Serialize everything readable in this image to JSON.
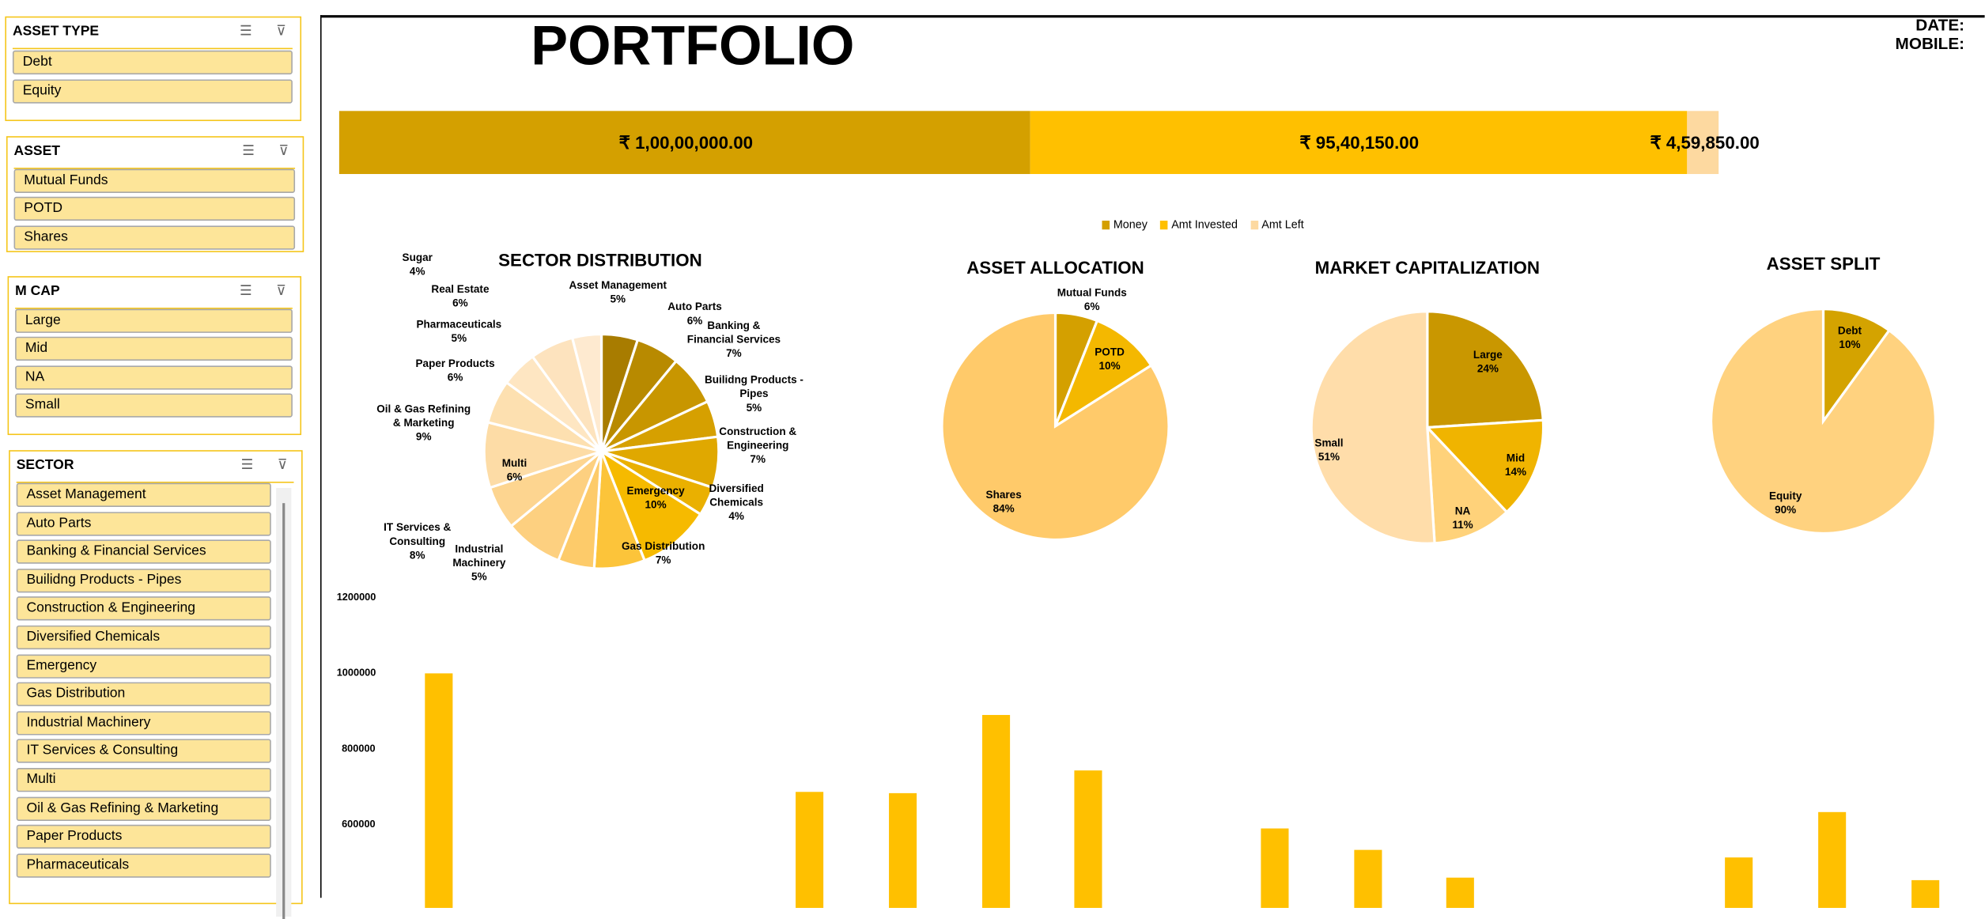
{
  "slicers": {
    "asset_type": {
      "title": "ASSET TYPE",
      "items": [
        "Debt",
        "Equity"
      ]
    },
    "asset": {
      "title": "ASSET",
      "items": [
        "Mutual Funds",
        "POTD",
        "Shares"
      ]
    },
    "mcap": {
      "title": "M CAP",
      "items": [
        "Large",
        "Mid",
        "NA",
        "Small"
      ]
    },
    "sector": {
      "title": "SECTOR",
      "items": [
        "Asset Management",
        "Auto Parts",
        "Banking & Financial Services",
        "Builidng Products - Pipes",
        "Construction & Engineering",
        "Diversified Chemicals",
        "Emergency",
        "Gas Distribution",
        "Industrial Machinery",
        "IT Services & Consulting",
        "Multi",
        "Oil & Gas Refining & Marketing",
        "Paper Products",
        "Pharmaceuticals"
      ]
    }
  },
  "header": {
    "title": "PORTFOLIO",
    "date_label": "DATE:",
    "mobile_label": "MOBILE:"
  },
  "chart_data": [
    {
      "type": "bar",
      "name": "money-summary",
      "stacked": true,
      "orientation": "horizontal",
      "series": [
        {
          "name": "Money",
          "value": 10000000,
          "label": "₹ 1,00,00,000.00",
          "color": "#D4A000"
        },
        {
          "name": "Amt Invested",
          "value": 9540150,
          "label": "₹ 95,40,150.00",
          "color": "#FFC000"
        },
        {
          "name": "Amt Left",
          "value": 459850,
          "label": "₹ 4,59,850.00",
          "color": "#FDD9A0"
        }
      ],
      "legend": "bottom"
    },
    {
      "type": "pie",
      "title": "SECTOR DISTRIBUTION",
      "slices": [
        {
          "label": "Asset Management",
          "value": 5,
          "pct": "5%",
          "color": "#A87C00"
        },
        {
          "label": "Auto Parts",
          "value": 6,
          "pct": "6%",
          "color": "#B88A00"
        },
        {
          "label": "Banking & Financial Services",
          "value": 7,
          "pct": "7%",
          "color": "#C89600"
        },
        {
          "label": "Builidng Products - Pipes",
          "value": 5,
          "pct": "5%",
          "color": "#D6A000"
        },
        {
          "label": "Construction & Engineering",
          "value": 7,
          "pct": "7%",
          "color": "#E0A800"
        },
        {
          "label": "Diversified Chemicals",
          "value": 4,
          "pct": "4%",
          "color": "#EAB000"
        },
        {
          "label": "Emergency",
          "value": 10,
          "pct": "10%",
          "color": "#F6BA00"
        },
        {
          "label": "Gas Distribution",
          "value": 7,
          "pct": "7%",
          "color": "#FCC43A"
        },
        {
          "label": "Industrial Machinery",
          "value": 5,
          "pct": "5%",
          "color": "#FDCB6A"
        },
        {
          "label": "IT Services & Consulting",
          "value": 8,
          "pct": "8%",
          "color": "#FDD080"
        },
        {
          "label": "Multi",
          "value": 6,
          "pct": "6%",
          "color": "#FDD590"
        },
        {
          "label": "Oil & Gas Refining & Marketing",
          "value": 9,
          "pct": "9%",
          "color": "#FDDCA6"
        },
        {
          "label": "Paper Products",
          "value": 6,
          "pct": "6%",
          "color": "#FDE0B0"
        },
        {
          "label": "Pharmaceuticals",
          "value": 5,
          "pct": "5%",
          "color": "#FEE6C2"
        },
        {
          "label": "Real Estate",
          "value": 6,
          "pct": "6%",
          "color": "#FDE3BE"
        },
        {
          "label": "Sugar",
          "value": 4,
          "pct": "4%",
          "color": "#FEEAD0"
        }
      ]
    },
    {
      "type": "pie",
      "title": "ASSET ALLOCATION",
      "slices": [
        {
          "label": "Mutual Funds",
          "value": 6,
          "pct": "6%",
          "color": "#D4A000"
        },
        {
          "label": "POTD",
          "value": 10,
          "pct": "10%",
          "color": "#F4B800"
        },
        {
          "label": "Shares",
          "value": 84,
          "pct": "84%",
          "color": "#FFCA6A"
        }
      ]
    },
    {
      "type": "pie",
      "title": "MARKET CAPITALIZATION",
      "slices": [
        {
          "label": "Large",
          "value": 24,
          "pct": "24%",
          "color": "#C99700"
        },
        {
          "label": "Mid",
          "value": 14,
          "pct": "14%",
          "color": "#F0B400"
        },
        {
          "label": "NA",
          "value": 11,
          "pct": "11%",
          "color": "#FFD27A"
        },
        {
          "label": "Small",
          "value": 51,
          "pct": "51%",
          "color": "#FFDDAA"
        }
      ]
    },
    {
      "type": "pie",
      "title": "ASSET SPLIT",
      "slices": [
        {
          "label": "Debt",
          "value": 10,
          "pct": "10%",
          "color": "#D4A300"
        },
        {
          "label": "Equity",
          "value": 90,
          "pct": "90%",
          "color": "#FFD27F"
        }
      ]
    },
    {
      "type": "bar",
      "name": "holdings-bar",
      "yticks": [
        "1200000",
        "1000000",
        "800000",
        "600000"
      ],
      "ylim": [
        450000,
        1200000
      ],
      "values": [
        1000000,
        null,
        null,
        null,
        687000,
        683000,
        891000,
        743000,
        null,
        591000,
        533000,
        460000,
        null,
        null,
        512000,
        633000,
        455000
      ],
      "color": "#FFC000"
    }
  ]
}
